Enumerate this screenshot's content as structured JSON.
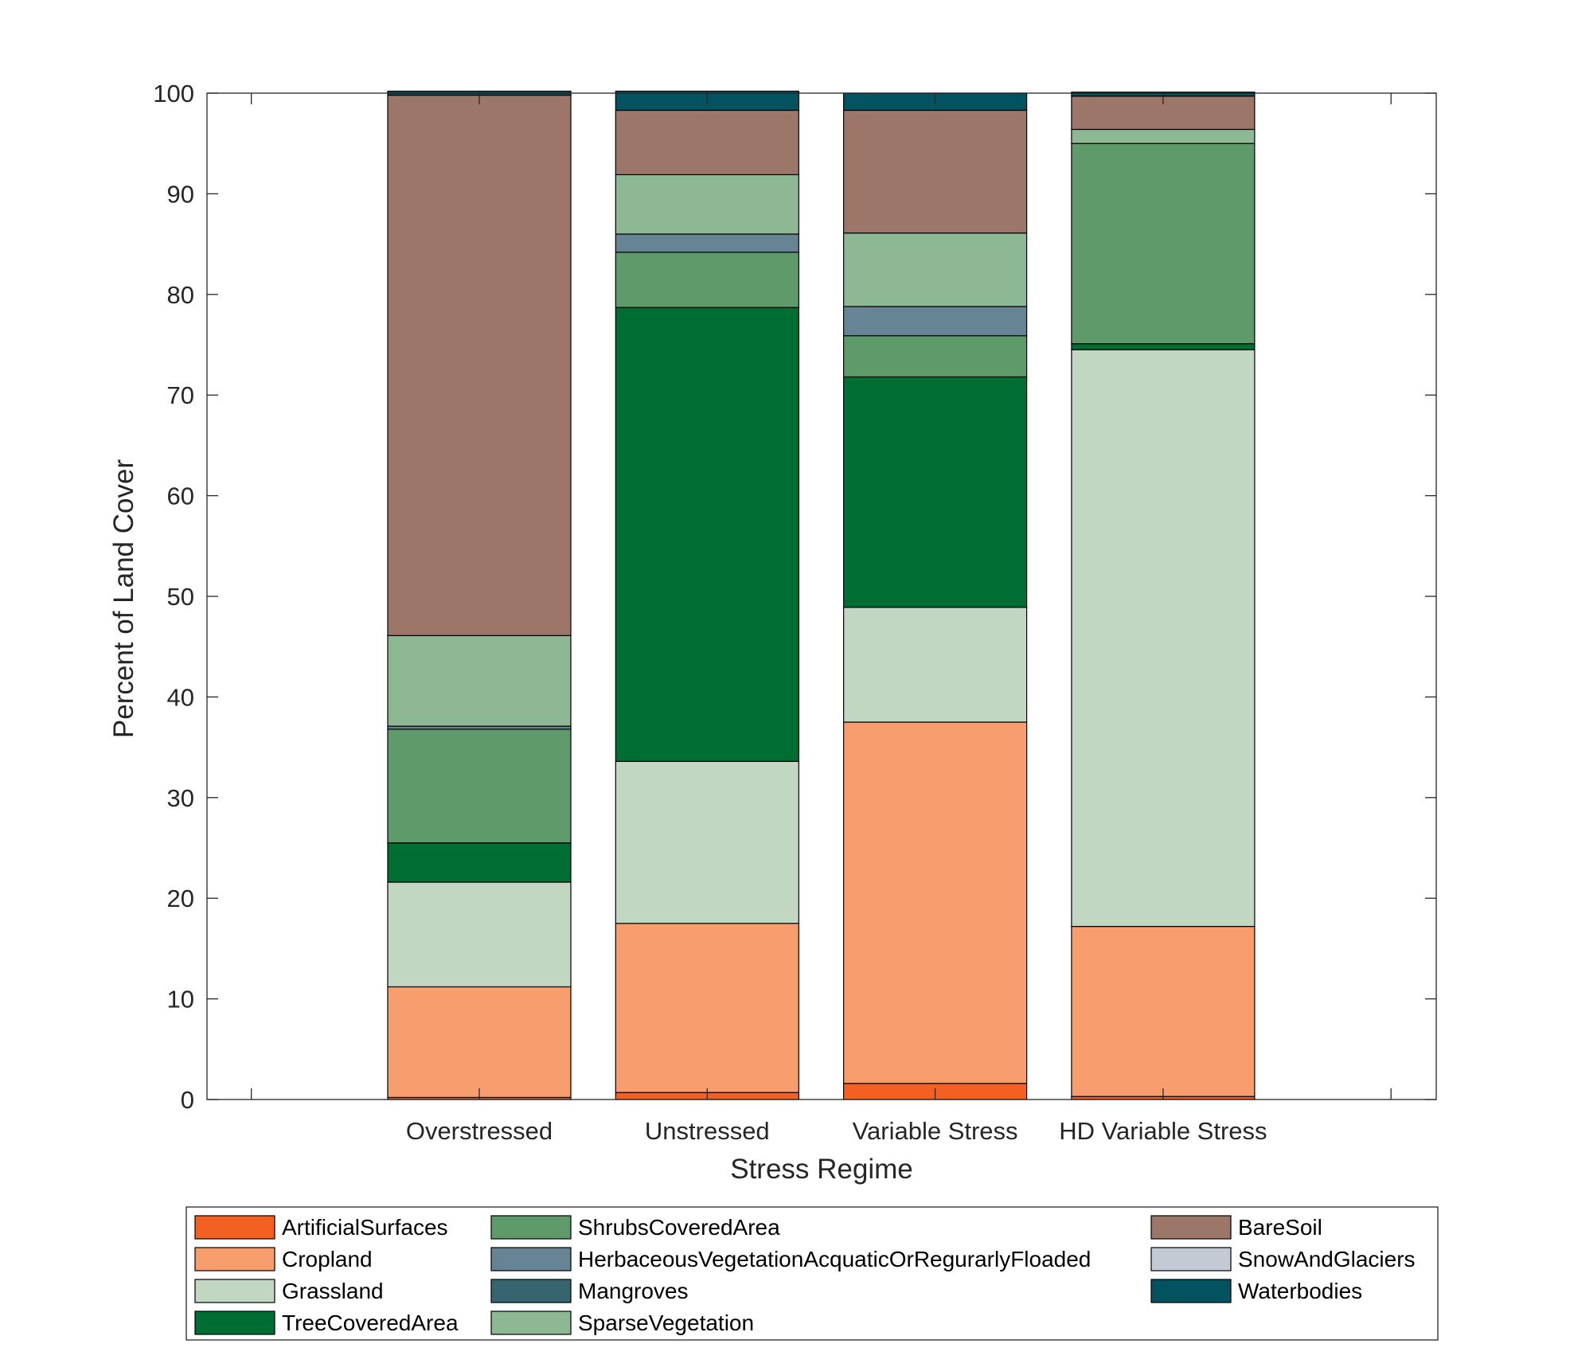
{
  "chart_data": {
    "type": "bar",
    "stacked": true,
    "xlabel": "Stress Regime",
    "ylabel": "Percent of Land Cover",
    "ylim": [
      0,
      100
    ],
    "yticks": [
      0,
      10,
      20,
      30,
      40,
      50,
      60,
      70,
      80,
      90,
      100
    ],
    "categories": [
      "Overstressed",
      "Unstressed",
      "Variable Stress",
      "HD Variable Stress"
    ],
    "grid": false,
    "legend_position": "bottom",
    "series": [
      {
        "name": "ArtificialSurfaces",
        "color": "#f26122",
        "values": [
          0.2,
          0.7,
          1.6,
          0.3
        ]
      },
      {
        "name": "Cropland",
        "color": "#f89e6e",
        "values": [
          11.0,
          16.8,
          35.9,
          16.9
        ]
      },
      {
        "name": "Grassland",
        "color": "#c2d7c2",
        "values": [
          10.4,
          16.1,
          11.4,
          57.3
        ]
      },
      {
        "name": "TreeCoveredArea",
        "color": "#006d32",
        "values": [
          3.9,
          45.1,
          22.9,
          0.6
        ]
      },
      {
        "name": "ShrubsCoveredArea",
        "color": "#5f9a6b",
        "values": [
          11.3,
          5.5,
          4.1,
          19.9
        ]
      },
      {
        "name": "HerbaceousVegetationAcquaticOrRegurarlyFloaded",
        "color": "#668493",
        "values": [
          0.3,
          1.8,
          2.9,
          0.0
        ]
      },
      {
        "name": "Mangroves",
        "color": "#36646f",
        "values": [
          0.0,
          0.0,
          0.0,
          0.0
        ]
      },
      {
        "name": "SparseVegetation",
        "color": "#8eb793",
        "values": [
          9.0,
          5.9,
          7.3,
          1.4
        ]
      },
      {
        "name": "BareSoil",
        "color": "#9c7769",
        "values": [
          53.7,
          6.4,
          12.2,
          3.3
        ]
      },
      {
        "name": "SnowAndGlaciers",
        "color": "#c4c9d6",
        "values": [
          0.0,
          0.0,
          0.0,
          0.0
        ]
      },
      {
        "name": "Waterbodies",
        "color": "#03525f",
        "values": [
          0.4,
          1.9,
          1.7,
          0.4
        ]
      }
    ]
  }
}
